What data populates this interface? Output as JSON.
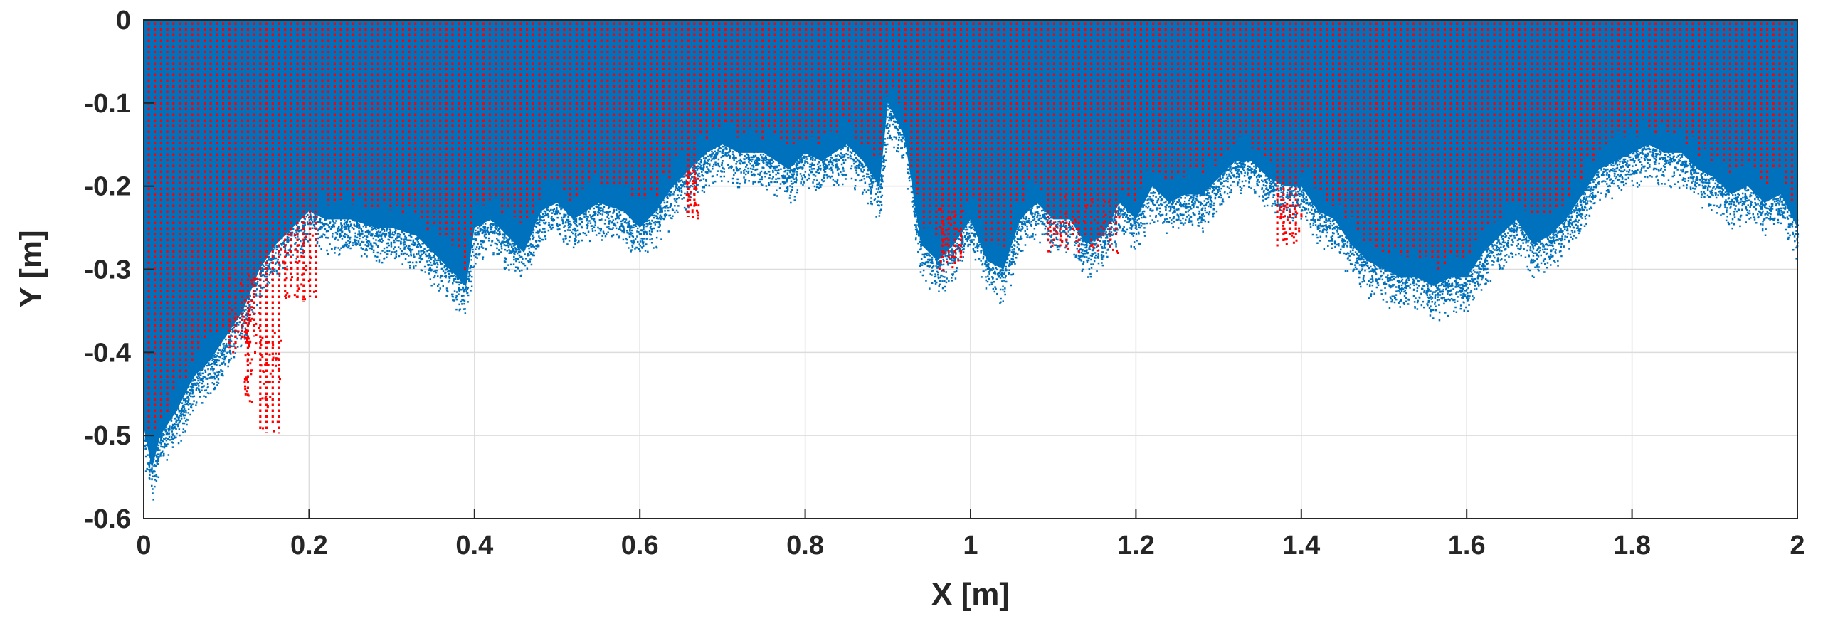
{
  "chart_data": {
    "type": "scatter",
    "title": "",
    "xlabel": "X [m]",
    "ylabel": "Y [m]",
    "xlim": [
      0,
      2
    ],
    "ylim": [
      -0.6,
      0
    ],
    "grid": true,
    "legend": "none",
    "xticks": [
      0,
      0.2,
      0.4,
      0.6,
      0.8,
      1,
      1.2,
      1.4,
      1.6,
      1.8,
      2
    ],
    "yticks": [
      0,
      -0.1,
      -0.2,
      -0.3,
      -0.4,
      -0.5,
      -0.6
    ],
    "xtick_labels": [
      "0",
      "0.2",
      "0.4",
      "0.6",
      "0.8",
      "1",
      "1.2",
      "1.4",
      "1.6",
      "1.8",
      "2"
    ],
    "ytick_labels": [
      "0",
      "-0.1",
      "-0.2",
      "-0.3",
      "-0.4",
      "-0.5",
      "-0.6"
    ],
    "series": [
      {
        "name": "blue point cloud",
        "color": "#0072BD",
        "marker": "dot",
        "lower_boundary": {
          "x": [
            0,
            0.01,
            0.02,
            0.04,
            0.06,
            0.08,
            0.1,
            0.12,
            0.14,
            0.16,
            0.18,
            0.2,
            0.22,
            0.25,
            0.28,
            0.3,
            0.33,
            0.35,
            0.37,
            0.39,
            0.4,
            0.42,
            0.44,
            0.46,
            0.48,
            0.5,
            0.52,
            0.55,
            0.58,
            0.6,
            0.62,
            0.64,
            0.66,
            0.68,
            0.7,
            0.72,
            0.75,
            0.78,
            0.8,
            0.82,
            0.85,
            0.87,
            0.89,
            0.9,
            0.92,
            0.94,
            0.96,
            0.98,
            1.0,
            1.02,
            1.04,
            1.06,
            1.08,
            1.1,
            1.12,
            1.14,
            1.16,
            1.18,
            1.2,
            1.22,
            1.24,
            1.26,
            1.28,
            1.3,
            1.32,
            1.34,
            1.36,
            1.38,
            1.4,
            1.42,
            1.44,
            1.46,
            1.48,
            1.5,
            1.52,
            1.54,
            1.56,
            1.58,
            1.6,
            1.62,
            1.64,
            1.66,
            1.68,
            1.7,
            1.72,
            1.74,
            1.76,
            1.78,
            1.8,
            1.82,
            1.84,
            1.86,
            1.88,
            1.9,
            1.92,
            1.94,
            1.96,
            1.98,
            2.0
          ],
          "y": [
            -0.49,
            -0.54,
            -0.5,
            -0.47,
            -0.43,
            -0.41,
            -0.38,
            -0.35,
            -0.3,
            -0.27,
            -0.25,
            -0.23,
            -0.24,
            -0.24,
            -0.25,
            -0.25,
            -0.26,
            -0.28,
            -0.3,
            -0.32,
            -0.25,
            -0.24,
            -0.26,
            -0.28,
            -0.23,
            -0.22,
            -0.24,
            -0.22,
            -0.23,
            -0.25,
            -0.23,
            -0.2,
            -0.18,
            -0.16,
            -0.15,
            -0.16,
            -0.16,
            -0.18,
            -0.16,
            -0.17,
            -0.15,
            -0.17,
            -0.2,
            -0.1,
            -0.14,
            -0.27,
            -0.29,
            -0.27,
            -0.24,
            -0.29,
            -0.3,
            -0.24,
            -0.22,
            -0.24,
            -0.24,
            -0.27,
            -0.26,
            -0.22,
            -0.24,
            -0.2,
            -0.22,
            -0.21,
            -0.21,
            -0.19,
            -0.17,
            -0.17,
            -0.19,
            -0.2,
            -0.2,
            -0.23,
            -0.24,
            -0.27,
            -0.29,
            -0.3,
            -0.31,
            -0.31,
            -0.32,
            -0.31,
            -0.31,
            -0.28,
            -0.26,
            -0.24,
            -0.27,
            -0.26,
            -0.24,
            -0.21,
            -0.18,
            -0.17,
            -0.16,
            -0.15,
            -0.16,
            -0.16,
            -0.18,
            -0.19,
            -0.21,
            -0.2,
            -0.22,
            -0.21,
            -0.25
          ]
        }
      },
      {
        "name": "red point columns",
        "color": "#FF0000",
        "marker": "dot",
        "column_spacing_x": 0.0075,
        "deep_columns": [
          {
            "x": [
              0.1,
              0.14
            ],
            "y_min": -0.4
          },
          {
            "x": [
              0.12,
              0.13
            ],
            "y_min": -0.46
          },
          {
            "x": [
              0.14,
              0.165
            ],
            "y_min": -0.5
          },
          {
            "x": [
              0.165,
              0.21
            ],
            "y_min": -0.34
          },
          {
            "x": [
              0.655,
              0.67
            ],
            "y_min": -0.24
          },
          {
            "x": [
              0.96,
              0.99
            ],
            "y_min": -0.3
          },
          {
            "x": [
              1.37,
              1.4
            ],
            "y_min": -0.275
          },
          {
            "x": [
              1.09,
              1.18
            ],
            "y_min": -0.28
          }
        ]
      }
    ]
  }
}
